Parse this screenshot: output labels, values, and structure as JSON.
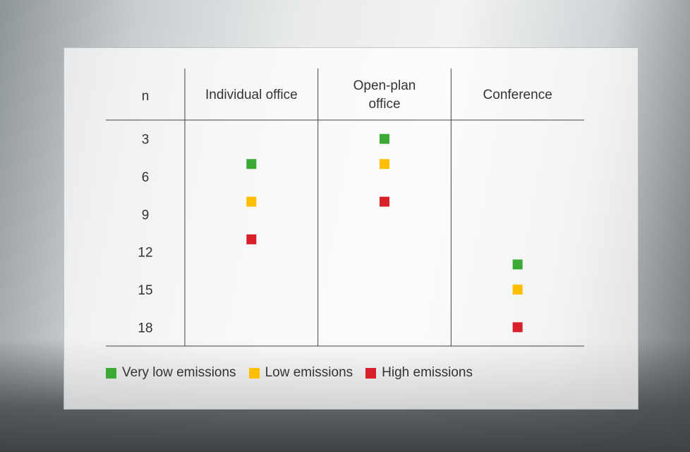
{
  "chart_data": {
    "type": "dot_table",
    "y_label": "n",
    "categories": [
      "Individual office",
      "Open-plan office",
      "Conference"
    ],
    "series": [
      {
        "name": "Very low emissions",
        "color": "#3aaa35",
        "values": [
          5,
          3,
          13
        ]
      },
      {
        "name": "Low emissions",
        "color": "#ffbe00",
        "values": [
          8,
          5,
          15
        ]
      },
      {
        "name": "High emissions",
        "color": "#d7202a",
        "values": [
          11,
          8,
          18
        ]
      }
    ],
    "ylim": [
      1.5,
      19.5
    ],
    "y_inverted": true,
    "yticks": [
      3,
      6,
      9,
      12,
      15,
      18
    ]
  }
}
